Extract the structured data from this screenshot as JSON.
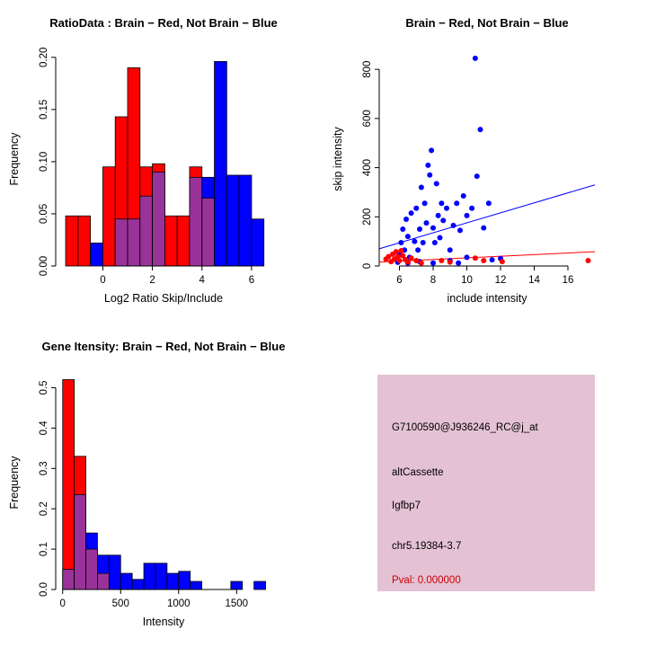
{
  "figure": {
    "background": "#ffffff"
  },
  "colors": {
    "red": "#ff0000",
    "blue": "#0000ff",
    "overlap": "#993399",
    "axis": "#000000"
  },
  "chart_data": [
    {
      "id": "ratio-hist",
      "type": "bar",
      "title": "RatioData : Brain − Red, Not Brain − Blue",
      "xlabel": "Log2 Ratio Skip/Include",
      "ylabel": "Frequency",
      "xlim": [
        -1.9,
        6.8
      ],
      "ylim": [
        0,
        0.205
      ],
      "x_ticks": [
        0,
        2,
        4,
        6
      ],
      "x_tick_labels": [
        "0",
        "2",
        "4",
        "6"
      ],
      "y_ticks": [
        0,
        0.05,
        0.1,
        0.15,
        0.2
      ],
      "y_tick_labels": [
        "0.00",
        "0.05",
        "0.10",
        "0.15",
        "0.20"
      ],
      "series_names": {
        "red": "Brain",
        "blue": "Not Brain"
      },
      "bins": [
        {
          "x": -1.5,
          "w": 0.5,
          "red": 0.048,
          "blue": 0
        },
        {
          "x": -1.0,
          "w": 0.5,
          "red": 0.048,
          "blue": 0
        },
        {
          "x": -0.5,
          "w": 0.5,
          "red": 0,
          "blue": 0.022
        },
        {
          "x": 0.0,
          "w": 0.5,
          "red": 0.095,
          "blue": 0
        },
        {
          "x": 0.5,
          "w": 0.5,
          "red": 0.143,
          "blue": 0.045
        },
        {
          "x": 1.0,
          "w": 0.5,
          "red": 0.19,
          "blue": 0.045
        },
        {
          "x": 1.5,
          "w": 0.5,
          "red": 0.095,
          "blue": 0.067
        },
        {
          "x": 2.0,
          "w": 0.5,
          "red": 0.098,
          "blue": 0.09
        },
        {
          "x": 2.5,
          "w": 0.5,
          "red": 0.048,
          "blue": 0
        },
        {
          "x": 3.0,
          "w": 0.5,
          "red": 0.048,
          "blue": 0
        },
        {
          "x": 3.5,
          "w": 0.5,
          "red": 0.095,
          "blue": 0.085
        },
        {
          "x": 4.0,
          "w": 0.5,
          "red": 0.065,
          "blue": 0.085
        },
        {
          "x": 4.5,
          "w": 0.5,
          "red": 0,
          "blue": 0.196
        },
        {
          "x": 5.0,
          "w": 0.5,
          "red": 0,
          "blue": 0.087
        },
        {
          "x": 5.5,
          "w": 0.5,
          "red": 0,
          "blue": 0.087
        },
        {
          "x": 6.0,
          "w": 0.5,
          "red": 0,
          "blue": 0.045
        }
      ]
    },
    {
      "id": "intensity-scatter",
      "type": "scatter",
      "title": "Brain − Red, Not Brain − Blue",
      "xlabel": "include intensity",
      "ylabel": "skip intensity",
      "xlim": [
        4.8,
        17.6
      ],
      "ylim": [
        0,
        870
      ],
      "x_ticks": [
        6,
        8,
        10,
        12,
        14,
        16
      ],
      "x_tick_labels": [
        "6",
        "8",
        "10",
        "12",
        "14",
        "16"
      ],
      "y_ticks": [
        0,
        200,
        400,
        600,
        800
      ],
      "y_tick_labels": [
        "0",
        "200",
        "400",
        "600",
        "800"
      ],
      "series_names": {
        "red": "Brain",
        "blue": "Not Brain"
      },
      "points_blue": [
        [
          5.9,
          15
        ],
        [
          6.0,
          45
        ],
        [
          6.1,
          95
        ],
        [
          6.2,
          150
        ],
        [
          6.3,
          65
        ],
        [
          6.4,
          190
        ],
        [
          6.5,
          120
        ],
        [
          6.6,
          35
        ],
        [
          6.7,
          215
        ],
        [
          6.9,
          100
        ],
        [
          7.0,
          235
        ],
        [
          7.1,
          65
        ],
        [
          7.2,
          150
        ],
        [
          7.3,
          320
        ],
        [
          7.4,
          95
        ],
        [
          7.5,
          255
        ],
        [
          7.6,
          175
        ],
        [
          7.7,
          410
        ],
        [
          7.8,
          370
        ],
        [
          7.9,
          470
        ],
        [
          8.0,
          155
        ],
        [
          8.1,
          95
        ],
        [
          8.2,
          335
        ],
        [
          8.3,
          205
        ],
        [
          8.4,
          115
        ],
        [
          8.5,
          255
        ],
        [
          8.6,
          185
        ],
        [
          8.8,
          235
        ],
        [
          9.0,
          65
        ],
        [
          9.2,
          165
        ],
        [
          9.4,
          255
        ],
        [
          9.6,
          145
        ],
        [
          9.8,
          285
        ],
        [
          10.0,
          205
        ],
        [
          10.3,
          235
        ],
        [
          10.5,
          845
        ],
        [
          10.6,
          365
        ],
        [
          10.8,
          555
        ],
        [
          11.0,
          155
        ],
        [
          11.3,
          255
        ],
        [
          11.5,
          25
        ],
        [
          12.0,
          30
        ],
        [
          6.5,
          12
        ],
        [
          7.2,
          18
        ],
        [
          8.0,
          12
        ],
        [
          9.0,
          22
        ],
        [
          9.5,
          12
        ],
        [
          10.0,
          35
        ]
      ],
      "points_red": [
        [
          5.2,
          28
        ],
        [
          5.35,
          38
        ],
        [
          5.5,
          18
        ],
        [
          5.6,
          48
        ],
        [
          5.7,
          28
        ],
        [
          5.8,
          58
        ],
        [
          5.9,
          38
        ],
        [
          6.0,
          22
        ],
        [
          6.1,
          62
        ],
        [
          6.2,
          42
        ],
        [
          6.35,
          26
        ],
        [
          6.5,
          16
        ],
        [
          6.7,
          32
        ],
        [
          7.0,
          22
        ],
        [
          7.3,
          12
        ],
        [
          8.5,
          22
        ],
        [
          9.0,
          16
        ],
        [
          10.5,
          32
        ],
        [
          11.0,
          22
        ],
        [
          12.1,
          18
        ],
        [
          17.2,
          22
        ]
      ],
      "line_blue": {
        "x1": 4.8,
        "y1": 70,
        "x2": 17.6,
        "y2": 330
      },
      "line_red": {
        "x1": 4.8,
        "y1": 16,
        "x2": 17.6,
        "y2": 58
      }
    },
    {
      "id": "gene-hist",
      "type": "bar",
      "title": "Gene Itensity: Brain − Red, Not Brain − Blue",
      "xlabel": "Intensity",
      "ylabel": "Frequency",
      "xlim": [
        -60,
        1800
      ],
      "ylim": [
        0,
        0.53
      ],
      "x_ticks": [
        0,
        500,
        1000,
        1500
      ],
      "x_tick_labels": [
        "0",
        "500",
        "1000",
        "1500"
      ],
      "y_ticks": [
        0,
        0.1,
        0.2,
        0.3,
        0.4,
        0.5
      ],
      "y_tick_labels": [
        "0.0",
        "0.1",
        "0.2",
        "0.3",
        "0.4",
        "0.5"
      ],
      "series_names": {
        "red": "Brain",
        "blue": "Not Brain"
      },
      "bins": [
        {
          "x": 0,
          "w": 100,
          "red": 0.52,
          "blue": 0.05
        },
        {
          "x": 100,
          "w": 100,
          "red": 0.33,
          "blue": 0.235
        },
        {
          "x": 200,
          "w": 100,
          "red": 0.1,
          "blue": 0.14
        },
        {
          "x": 300,
          "w": 100,
          "red": 0.04,
          "blue": 0.085
        },
        {
          "x": 400,
          "w": 100,
          "red": 0,
          "blue": 0.085
        },
        {
          "x": 500,
          "w": 100,
          "red": 0,
          "blue": 0.04
        },
        {
          "x": 600,
          "w": 100,
          "red": 0,
          "blue": 0.025
        },
        {
          "x": 700,
          "w": 100,
          "red": 0,
          "blue": 0.065
        },
        {
          "x": 800,
          "w": 100,
          "red": 0,
          "blue": 0.065
        },
        {
          "x": 900,
          "w": 100,
          "red": 0,
          "blue": 0.04
        },
        {
          "x": 1000,
          "w": 100,
          "red": 0,
          "blue": 0.045
        },
        {
          "x": 1100,
          "w": 100,
          "red": 0,
          "blue": 0.02
        },
        {
          "x": 1450,
          "w": 100,
          "red": 0,
          "blue": 0.02
        },
        {
          "x": 1650,
          "w": 100,
          "red": 0,
          "blue": 0.02
        }
      ]
    }
  ],
  "info_panel": {
    "bg": "#e4c2d4",
    "lines": [
      {
        "text": "G7100590@J936246_RC@j_at",
        "color": "#000000"
      },
      {
        "text": "altCassette",
        "color": "#000000"
      },
      {
        "text": "Igfbp7",
        "color": "#000000"
      },
      {
        "text": "chr5.19384-3.7",
        "color": "#000000"
      },
      {
        "text": "Pval: 0.000000",
        "color": "#cc0000"
      }
    ]
  }
}
